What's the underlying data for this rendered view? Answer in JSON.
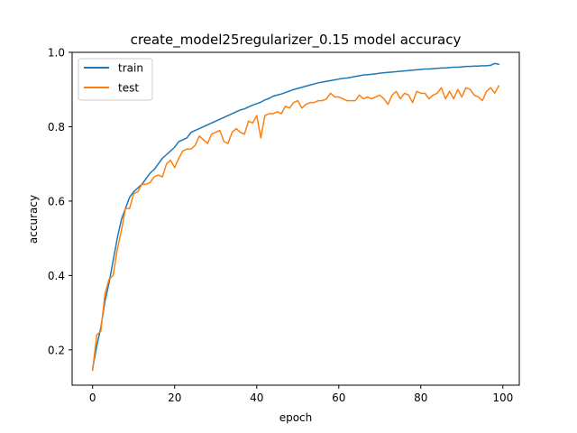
{
  "chart_data": {
    "type": "line",
    "title": "create_model25regularizer_0.15 model accuracy",
    "xlabel": "epoch",
    "ylabel": "accuracy",
    "xlim": [
      -5,
      104
    ],
    "ylim": [
      0.105,
      1.0
    ],
    "xticks": [
      0,
      20,
      40,
      60,
      80,
      100
    ],
    "yticks": [
      0.2,
      0.4,
      0.6,
      0.8,
      1.0
    ],
    "xtick_labels": [
      "0",
      "20",
      "40",
      "60",
      "80",
      "100"
    ],
    "ytick_labels": [
      "0.2",
      "0.4",
      "0.6",
      "0.8",
      "1.0"
    ],
    "grid": false,
    "legend_position": "upper left",
    "series": [
      {
        "name": "train",
        "color": "#1f77b4",
        "x": [
          0,
          1,
          2,
          3,
          4,
          5,
          6,
          7,
          8,
          9,
          10,
          11,
          12,
          13,
          14,
          15,
          16,
          17,
          18,
          19,
          20,
          21,
          22,
          23,
          24,
          25,
          26,
          27,
          28,
          29,
          30,
          31,
          32,
          33,
          34,
          35,
          36,
          37,
          38,
          39,
          40,
          41,
          42,
          43,
          44,
          45,
          46,
          47,
          48,
          49,
          50,
          51,
          52,
          53,
          54,
          55,
          56,
          57,
          58,
          59,
          60,
          61,
          62,
          63,
          64,
          65,
          66,
          67,
          68,
          69,
          70,
          71,
          72,
          73,
          74,
          75,
          76,
          77,
          78,
          79,
          80,
          81,
          82,
          83,
          84,
          85,
          86,
          87,
          88,
          89,
          90,
          91,
          92,
          93,
          94,
          95,
          96,
          97,
          98,
          99
        ],
        "values": [
          0.15,
          0.21,
          0.26,
          0.33,
          0.38,
          0.44,
          0.5,
          0.55,
          0.58,
          0.61,
          0.625,
          0.635,
          0.645,
          0.66,
          0.675,
          0.685,
          0.7,
          0.715,
          0.725,
          0.735,
          0.745,
          0.76,
          0.765,
          0.77,
          0.785,
          0.79,
          0.795,
          0.8,
          0.805,
          0.81,
          0.815,
          0.82,
          0.825,
          0.83,
          0.835,
          0.84,
          0.845,
          0.848,
          0.853,
          0.858,
          0.862,
          0.866,
          0.872,
          0.876,
          0.882,
          0.885,
          0.888,
          0.892,
          0.896,
          0.9,
          0.903,
          0.906,
          0.909,
          0.912,
          0.915,
          0.918,
          0.92,
          0.922,
          0.924,
          0.926,
          0.928,
          0.93,
          0.931,
          0.933,
          0.935,
          0.937,
          0.939,
          0.94,
          0.941,
          0.942,
          0.944,
          0.945,
          0.946,
          0.947,
          0.948,
          0.949,
          0.95,
          0.951,
          0.952,
          0.953,
          0.954,
          0.955,
          0.955,
          0.956,
          0.957,
          0.958,
          0.958,
          0.959,
          0.96,
          0.96,
          0.961,
          0.962,
          0.962,
          0.963,
          0.963,
          0.964,
          0.964,
          0.965,
          0.97,
          0.968
        ]
      },
      {
        "name": "test",
        "color": "#ff7f0e",
        "x": [
          0,
          1,
          2,
          3,
          4,
          5,
          6,
          7,
          8,
          9,
          10,
          11,
          12,
          13,
          14,
          15,
          16,
          17,
          18,
          19,
          20,
          21,
          22,
          23,
          24,
          25,
          26,
          27,
          28,
          29,
          30,
          31,
          32,
          33,
          34,
          35,
          36,
          37,
          38,
          39,
          40,
          41,
          42,
          43,
          44,
          45,
          46,
          47,
          48,
          49,
          50,
          51,
          52,
          53,
          54,
          55,
          56,
          57,
          58,
          59,
          60,
          61,
          62,
          63,
          64,
          65,
          66,
          67,
          68,
          69,
          70,
          71,
          72,
          73,
          74,
          75,
          76,
          77,
          78,
          79,
          80,
          81,
          82,
          83,
          84,
          85,
          86,
          87,
          88,
          89,
          90,
          91,
          92,
          93,
          94,
          95,
          96,
          97,
          98,
          99
        ],
        "values": [
          0.145,
          0.24,
          0.25,
          0.35,
          0.39,
          0.4,
          0.47,
          0.52,
          0.58,
          0.58,
          0.62,
          0.625,
          0.645,
          0.645,
          0.65,
          0.665,
          0.67,
          0.665,
          0.7,
          0.71,
          0.69,
          0.715,
          0.735,
          0.74,
          0.74,
          0.75,
          0.775,
          0.765,
          0.755,
          0.78,
          0.785,
          0.79,
          0.76,
          0.755,
          0.785,
          0.795,
          0.785,
          0.78,
          0.815,
          0.81,
          0.83,
          0.77,
          0.83,
          0.835,
          0.835,
          0.84,
          0.835,
          0.855,
          0.85,
          0.865,
          0.87,
          0.85,
          0.86,
          0.865,
          0.865,
          0.87,
          0.87,
          0.875,
          0.89,
          0.88,
          0.88,
          0.875,
          0.87,
          0.87,
          0.87,
          0.885,
          0.875,
          0.88,
          0.875,
          0.88,
          0.885,
          0.875,
          0.86,
          0.885,
          0.895,
          0.875,
          0.89,
          0.885,
          0.865,
          0.895,
          0.89,
          0.89,
          0.875,
          0.885,
          0.89,
          0.905,
          0.875,
          0.895,
          0.875,
          0.9,
          0.88,
          0.905,
          0.9,
          0.885,
          0.88,
          0.87,
          0.895,
          0.905,
          0.89,
          0.91
        ]
      }
    ]
  }
}
